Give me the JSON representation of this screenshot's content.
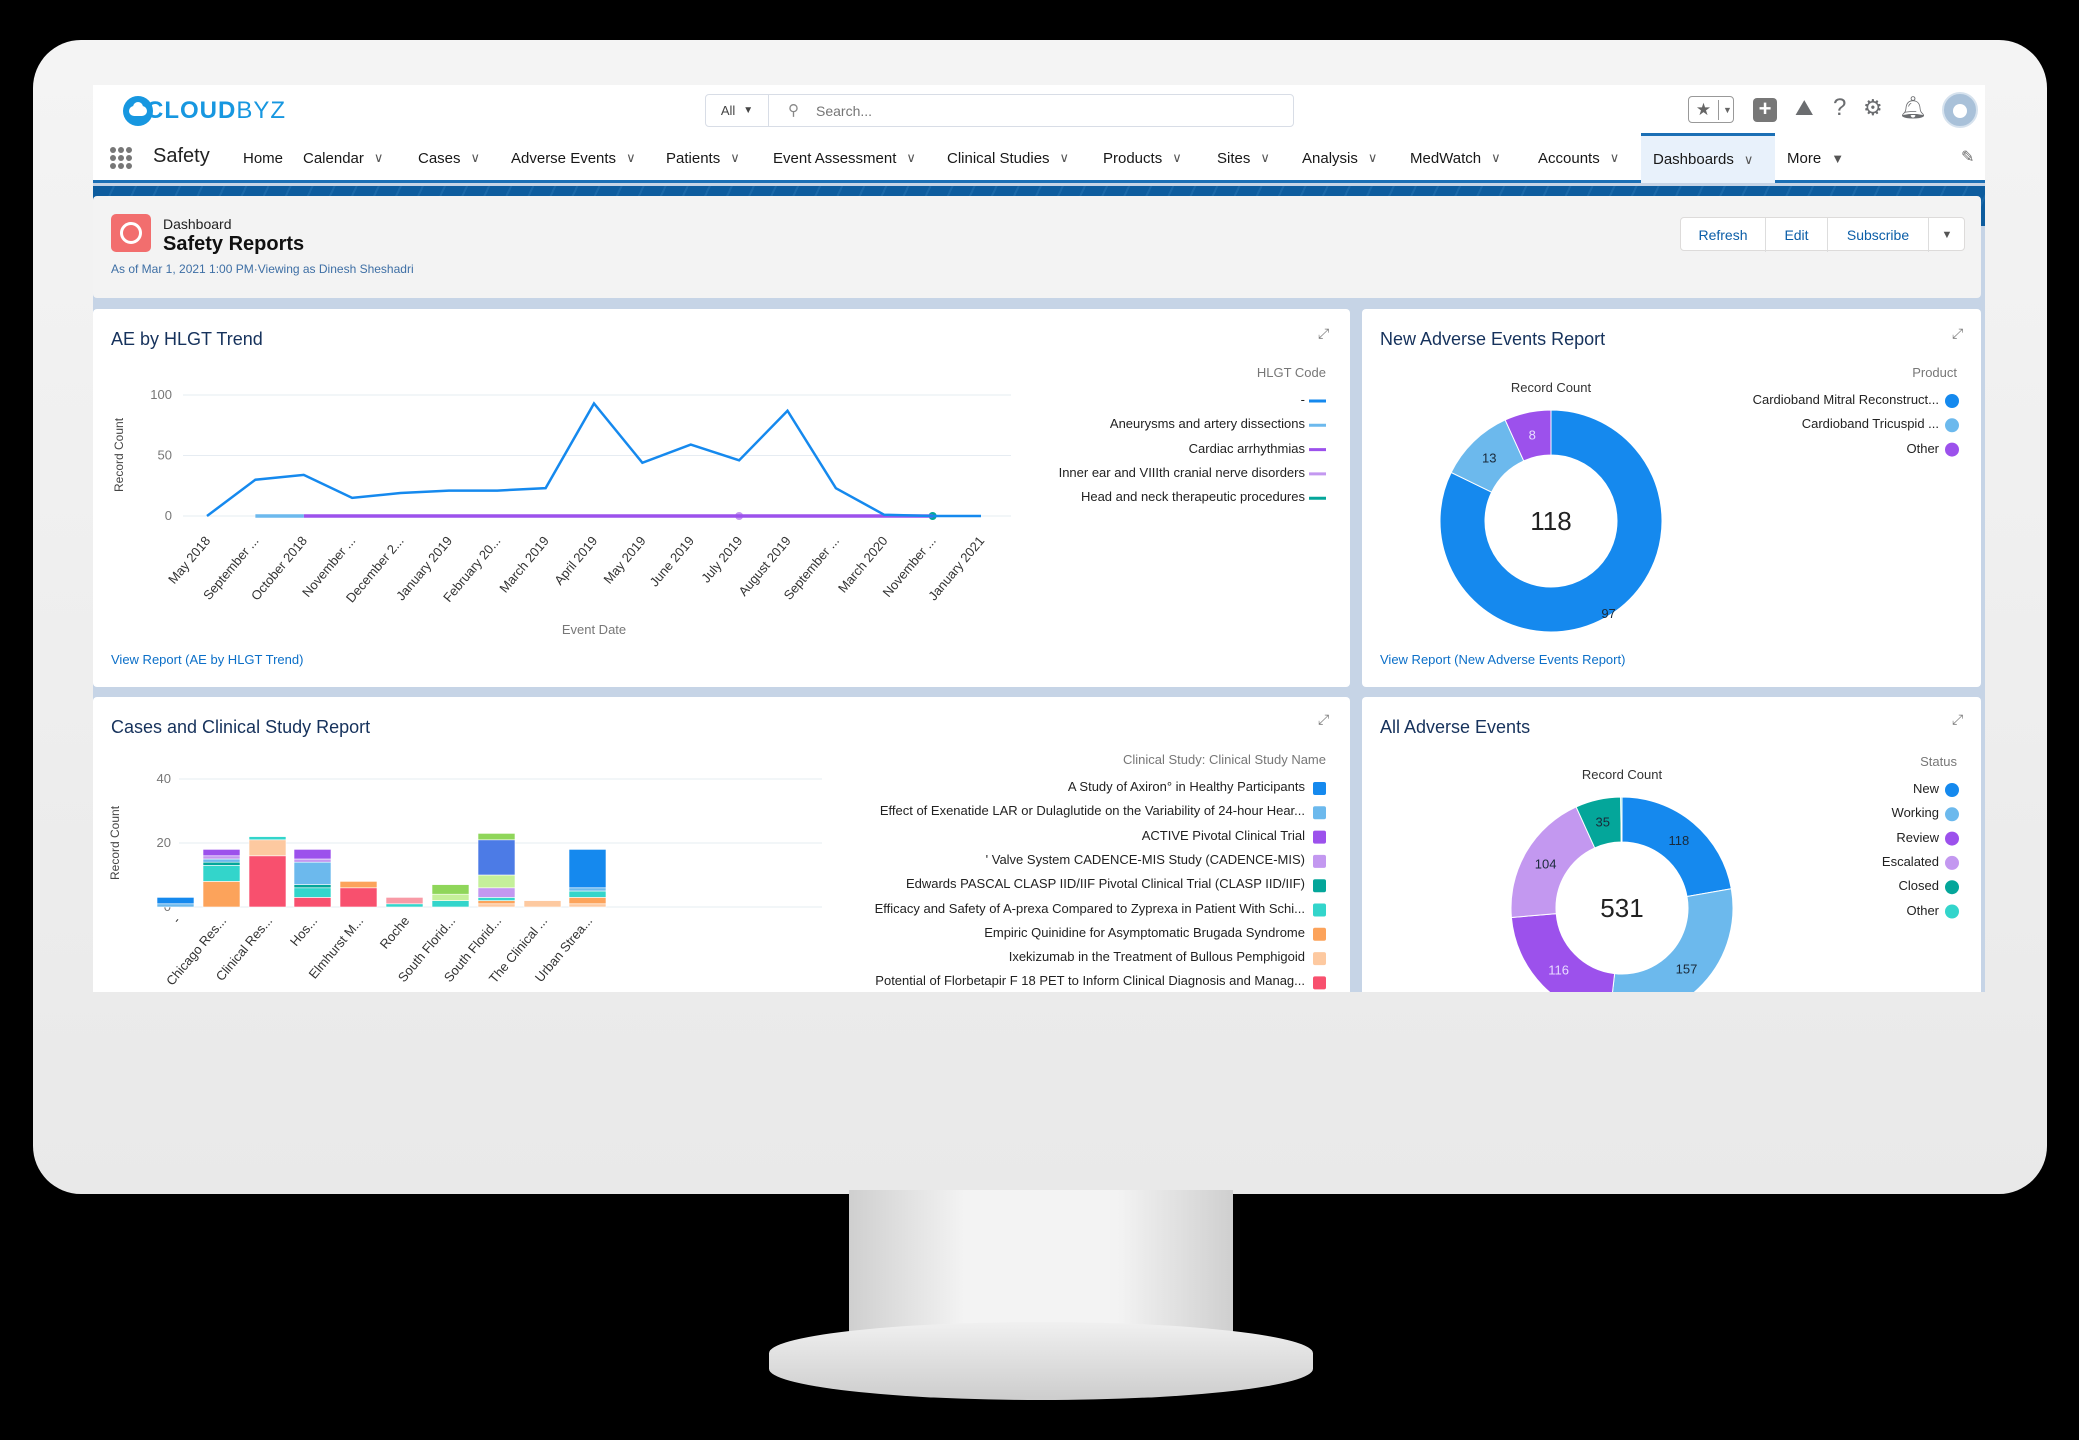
{
  "app": {
    "brand_bold": "CLOUD",
    "brand_light": "BYZ",
    "app_name": "Safety"
  },
  "search": {
    "scope": "All",
    "placeholder": "Search..."
  },
  "header_icons": [
    "star-icon",
    "plus-icon",
    "trailhead-icon",
    "help-icon",
    "gear-icon",
    "bell-icon",
    "avatar"
  ],
  "nav": {
    "items": [
      {
        "label": "Home",
        "chevron": false
      },
      {
        "label": "Calendar",
        "chevron": true
      },
      {
        "label": "Cases",
        "chevron": true
      },
      {
        "label": "Adverse Events",
        "chevron": true
      },
      {
        "label": "Patients",
        "chevron": true
      },
      {
        "label": "Event Assessment",
        "chevron": true
      },
      {
        "label": "Clinical Studies",
        "chevron": true
      },
      {
        "label": "Products",
        "chevron": true
      },
      {
        "label": "Sites",
        "chevron": true
      },
      {
        "label": "Analysis",
        "chevron": true
      },
      {
        "label": "MedWatch",
        "chevron": true
      },
      {
        "label": "Accounts",
        "chevron": true
      },
      {
        "label": "Dashboards",
        "chevron": true,
        "active": true
      },
      {
        "label": "More",
        "chevron": true
      }
    ]
  },
  "dashboard": {
    "type_label": "Dashboard",
    "title": "Safety Reports",
    "subtitle": "As of Mar 1, 2021 1:00 PM·Viewing as Dinesh Sheshadri",
    "buttons": {
      "refresh": "Refresh",
      "edit": "Edit",
      "subscribe": "Subscribe"
    }
  },
  "colors": {
    "accent": "#1589ee",
    "link": "#0b6fc8",
    "dashboard_icon": "#f26e6e"
  },
  "panels": {
    "ae_trend": {
      "title": "AE by HLGT Trend",
      "link": "View Report (AE by HLGT Trend)"
    },
    "new_ae": {
      "title": "New Adverse Events Report",
      "link": "View Report (New Adverse Events Report)"
    },
    "cases": {
      "title": "Cases and Clinical Study Report"
    },
    "all_ae": {
      "title": "All Adverse Events"
    }
  },
  "chart_data": [
    {
      "type": "line",
      "xlabel": "Event Date",
      "ylabel": "Record Count",
      "legend_title": "HLGT Code",
      "legend_position": "right",
      "ylim": [
        0,
        100
      ],
      "yticks": [
        0,
        50,
        100
      ],
      "grid": true,
      "categories": [
        "May 2018",
        "September ...",
        "October 2018",
        "November ...",
        "December 2...",
        "January 2019",
        "February 20...",
        "March 2019",
        "April 2019",
        "May 2019",
        "June 2019",
        "July 2019",
        "August 2019",
        "September ...",
        "March 2020",
        "November ...",
        "January 2021"
      ],
      "series": [
        {
          "name": "-",
          "color": "#1589ee",
          "values": [
            0,
            30,
            34,
            15,
            19,
            21,
            21,
            23,
            93,
            44,
            59,
            46,
            87,
            23,
            1,
            0,
            0
          ]
        },
        {
          "name": "Aneurysms and artery dissections",
          "color": "#6cb9ed",
          "values": [
            null,
            0,
            0,
            null,
            null,
            null,
            null,
            null,
            null,
            null,
            null,
            null,
            null,
            null,
            null,
            null,
            null
          ]
        },
        {
          "name": "Cardiac arrhythmias",
          "color": "#9c51ec",
          "values": [
            null,
            null,
            0,
            0,
            0,
            0,
            0,
            0,
            0,
            0,
            0,
            0,
            0,
            0,
            0,
            0,
            null
          ]
        },
        {
          "name": "Inner ear and VIIIth cranial nerve disorders",
          "color": "#c398f0",
          "values": [
            null,
            null,
            null,
            null,
            null,
            null,
            null,
            null,
            null,
            null,
            null,
            0,
            null,
            null,
            null,
            null,
            null
          ]
        },
        {
          "name": "Head and neck therapeutic procedures",
          "color": "#04a69a",
          "values": [
            null,
            null,
            null,
            null,
            null,
            null,
            null,
            null,
            null,
            null,
            null,
            null,
            null,
            null,
            null,
            0,
            null
          ]
        }
      ]
    },
    {
      "type": "pie",
      "donut": true,
      "title": "Record Count",
      "total": 118,
      "legend_title": "Product",
      "legend_position": "right",
      "slices": [
        {
          "name": "Cardioband Mitral Reconstruct...",
          "value": 97,
          "color": "#1589ee"
        },
        {
          "name": "Cardioband Tricuspid ...",
          "value": 13,
          "color": "#6cb9ed"
        },
        {
          "name": "Other",
          "value": 8,
          "color": "#9c51ec"
        }
      ]
    },
    {
      "type": "bar",
      "stacked": true,
      "ylabel": "Record Count",
      "ylim": [
        0,
        40
      ],
      "yticks": [
        0,
        20,
        40
      ],
      "grid": true,
      "legend_title": "Clinical Study: Clinical Study Name",
      "legend_position": "right",
      "categories": [
        "-",
        "Chicago Res...",
        "Clinical Res...",
        "Hos...",
        "Elmhurst M...",
        "Roche",
        "South Florid...",
        "South Florid...",
        "The Clinical ...",
        "Urban Strea..."
      ],
      "series": [
        {
          "name": "A Study of Axiron° in Healthy Participants",
          "color": "#1589ee",
          "values": [
            2,
            0,
            0,
            0,
            0,
            0,
            0,
            0,
            0,
            12
          ]
        },
        {
          "name": "Effect of Exenatide LAR or Dulaglutide on the Variability of 24-hour Hear...",
          "color": "#6cb9ed",
          "values": [
            1,
            1,
            0,
            7,
            0,
            0,
            0,
            0,
            0,
            1
          ]
        },
        {
          "name": "ACTIVE Pivotal Clinical Trial",
          "color": "#9c51ec",
          "values": [
            0,
            2,
            0,
            3,
            0,
            0,
            0,
            0,
            0,
            0
          ]
        },
        {
          "name": "' Valve System CADENCE-MIS Study (CADENCE-MIS)",
          "color": "#c398f0",
          "values": [
            0,
            1,
            0,
            1,
            0,
            0,
            0,
            3,
            0,
            0
          ]
        },
        {
          "name": "Edwards PASCAL CLASP IID/IIF Pivotal Clinical Trial (CLASP IID/IIF)",
          "color": "#04a69a",
          "values": [
            0,
            1,
            0,
            1,
            0,
            0,
            0,
            0,
            0,
            0
          ]
        },
        {
          "name": "Efficacy and Safety of A-prexa Compared to Zyprexa in Patient With Schi...",
          "color": "#33d5cb",
          "values": [
            0,
            5,
            1,
            3,
            0,
            1,
            2,
            1,
            0,
            2
          ]
        },
        {
          "name": "Empiric Quinidine for Asymptomatic Brugada Syndrome",
          "color": "#fca35b",
          "values": [
            0,
            8,
            0,
            0,
            2,
            0,
            0,
            1,
            0,
            2
          ]
        },
        {
          "name": "Ixekizumab in the Treatment of Bullous Pemphigoid",
          "color": "#fdc9a0",
          "values": [
            0,
            0,
            5,
            0,
            0,
            0,
            0,
            1,
            2,
            1
          ]
        },
        {
          "name": "Potential of Florbetapir F 18 PET to Inform Clinical Diagnosis and Manag...",
          "color": "#f8506e",
          "values": [
            0,
            0,
            16,
            3,
            6,
            0,
            0,
            0,
            0,
            0
          ]
        },
        {
          "color": "#f89aa6",
          "values": [
            0,
            0,
            0,
            0,
            0,
            2,
            0,
            0,
            0,
            0
          ]
        },
        {
          "color": "#c5f09a",
          "values": [
            0,
            0,
            0,
            0,
            0,
            0,
            2,
            4,
            0,
            0
          ]
        },
        {
          "color": "#4c7be6",
          "values": [
            0,
            0,
            0,
            0,
            0,
            0,
            0,
            11,
            0,
            0
          ]
        },
        {
          "color": "#8fd65a",
          "values": [
            0,
            0,
            0,
            0,
            0,
            0,
            3,
            2,
            0,
            0
          ]
        }
      ]
    },
    {
      "type": "pie",
      "donut": true,
      "title": "Record Count",
      "total": 531,
      "legend_title": "Status",
      "legend_position": "right",
      "slices": [
        {
          "name": "New",
          "value": 118,
          "color": "#1589ee"
        },
        {
          "name": "Working",
          "value": 157,
          "color": "#6cb9ed"
        },
        {
          "name": "Review",
          "value": 116,
          "color": "#9c51ec"
        },
        {
          "name": "Escalated",
          "value": 104,
          "color": "#c398f0"
        },
        {
          "name": "Closed",
          "value": 35,
          "color": "#04a69a"
        },
        {
          "name": "Other",
          "value": 1,
          "color": "#33d5cb"
        }
      ]
    }
  ]
}
